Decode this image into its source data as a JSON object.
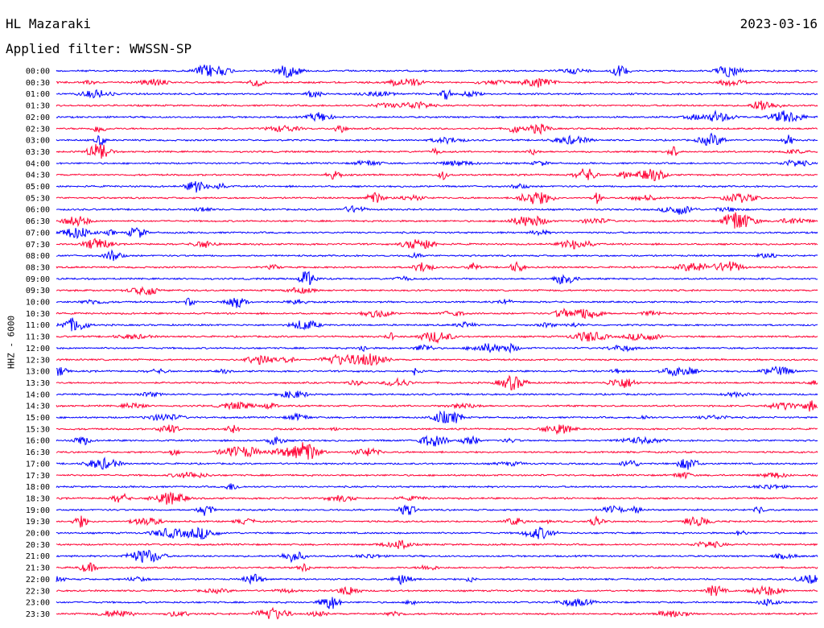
{
  "header": {
    "station": "HL Mazaraki",
    "date": "2023-03-16",
    "filter": "Applied filter: WWSSN-SP"
  },
  "chart_data": {
    "type": "line",
    "title": "HL Mazaraki",
    "subtitle": "Applied filter: WWSSN-SP",
    "ylabel": "HHZ - 6000",
    "xlabel": "",
    "colors": [
      "#0000ff",
      "#ff0033"
    ],
    "rows": [
      "00:00",
      "00:30",
      "01:00",
      "01:30",
      "02:00",
      "02:30",
      "03:00",
      "03:30",
      "04:00",
      "04:30",
      "05:00",
      "05:30",
      "06:00",
      "06:30",
      "07:00",
      "07:30",
      "08:00",
      "08:30",
      "09:00",
      "09:30",
      "10:00",
      "10:30",
      "11:00",
      "11:30",
      "12:00",
      "12:30",
      "13:00",
      "13:30",
      "14:00",
      "14:30",
      "15:00",
      "15:30",
      "16:00",
      "16:30",
      "17:00",
      "17:30",
      "18:00",
      "18:30",
      "19:00",
      "19:30",
      "20:00",
      "20:30",
      "21:00",
      "21:30",
      "22:00",
      "22:30",
      "23:00",
      "23:30"
    ]
  }
}
